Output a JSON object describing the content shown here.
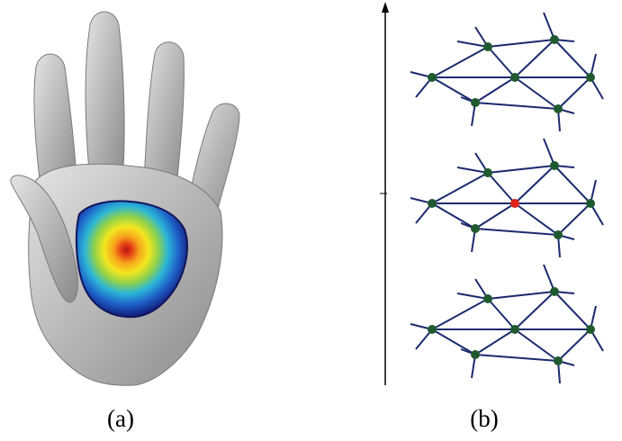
{
  "figure": {
    "panels": [
      {
        "id": "a",
        "caption": "(a)",
        "content": "hand-mesh-with-heat-field"
      },
      {
        "id": "b",
        "caption": "(b)",
        "content": "stacked-mesh-layers"
      }
    ],
    "colors": {
      "hand": "#b8b8b8",
      "heat_outer": "#1a2a8a",
      "heat_mid": "#27a9e1",
      "heat_inner": "#f1e01c",
      "heat_core": "#d7261e",
      "mesh_edge": "#1c2a6e",
      "mesh_node": "#1f5a2e",
      "highlight_node": "#e0231b",
      "axis": "#000000"
    },
    "layers": [
      {
        "highlighted_node": null
      },
      {
        "highlighted_node": 4
      },
      {
        "highlighted_node": null
      }
    ]
  }
}
